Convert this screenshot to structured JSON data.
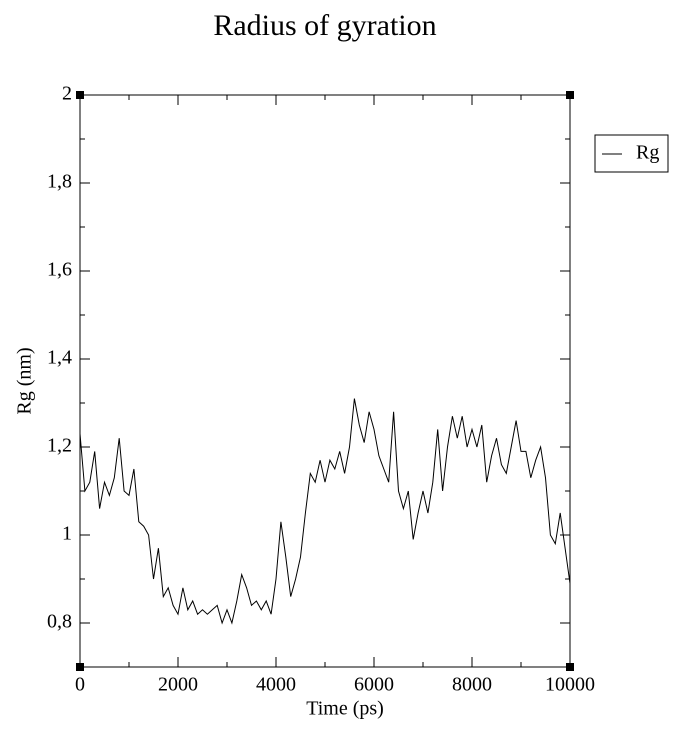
{
  "chart_data": {
    "type": "line",
    "title": "Radius of gyration",
    "x_label": "Time (ps)",
    "y_label": "Rg (nm)",
    "xlim": [
      0,
      10000
    ],
    "ylim": [
      0.7,
      2
    ],
    "xticks": [
      0,
      2000,
      4000,
      6000,
      8000,
      10000
    ],
    "xminorticks": [
      1000,
      3000,
      5000,
      7000,
      9000
    ],
    "yticks": [
      {
        "value": 0.8,
        "label": "0,8"
      },
      1,
      {
        "value": 1.2,
        "label": "1,2"
      },
      {
        "value": 1.4,
        "label": "1,4"
      },
      {
        "value": 1.6,
        "label": "1,6"
      },
      {
        "value": 1.8,
        "label": "1,8"
      },
      2
    ],
    "yminorticks": [
      0.9,
      1.1,
      1.3,
      1.5,
      1.7,
      1.9
    ],
    "legend": "upper right",
    "grid": false,
    "x": [
      0,
      100,
      200,
      300,
      400,
      500,
      600,
      700,
      800,
      900,
      1000,
      1100,
      1200,
      1300,
      1400,
      1500,
      1600,
      1700,
      1800,
      1900,
      2000,
      2100,
      2200,
      2300,
      2400,
      2500,
      2600,
      2700,
      2800,
      2900,
      3000,
      3100,
      3200,
      3300,
      3400,
      3500,
      3600,
      3700,
      3800,
      3900,
      4000,
      4100,
      4200,
      4300,
      4400,
      4500,
      4600,
      4700,
      4800,
      4900,
      5000,
      5100,
      5200,
      5300,
      5400,
      5500,
      5600,
      5700,
      5800,
      5900,
      6000,
      6100,
      6200,
      6300,
      6400,
      6500,
      6600,
      6700,
      6800,
      6900,
      7000,
      7100,
      7200,
      7300,
      7400,
      7500,
      7600,
      7700,
      7800,
      7900,
      8000,
      8100,
      8200,
      8300,
      8400,
      8500,
      8600,
      8700,
      8800,
      8900,
      9000,
      9100,
      9200,
      9300,
      9400,
      9500,
      9600,
      9700,
      9800,
      9900,
      10000
    ],
    "series": [
      {
        "name": "Rg",
        "color": "#000000",
        "values": [
          1.23,
          1.1,
          1.12,
          1.19,
          1.06,
          1.12,
          1.09,
          1.13,
          1.22,
          1.1,
          1.09,
          1.15,
          1.03,
          1.02,
          1.0,
          0.9,
          0.97,
          0.86,
          0.88,
          0.84,
          0.82,
          0.88,
          0.83,
          0.85,
          0.82,
          0.83,
          0.82,
          0.83,
          0.84,
          0.8,
          0.83,
          0.8,
          0.85,
          0.91,
          0.88,
          0.84,
          0.85,
          0.83,
          0.85,
          0.82,
          0.9,
          1.03,
          0.95,
          0.86,
          0.9,
          0.95,
          1.05,
          1.14,
          1.12,
          1.17,
          1.12,
          1.17,
          1.15,
          1.19,
          1.14,
          1.2,
          1.31,
          1.25,
          1.21,
          1.28,
          1.24,
          1.18,
          1.15,
          1.12,
          1.28,
          1.1,
          1.06,
          1.1,
          0.99,
          1.05,
          1.1,
          1.05,
          1.12,
          1.24,
          1.1,
          1.2,
          1.27,
          1.22,
          1.27,
          1.2,
          1.24,
          1.2,
          1.25,
          1.12,
          1.18,
          1.22,
          1.16,
          1.14,
          1.2,
          1.26,
          1.19,
          1.19,
          1.13,
          1.17,
          1.2,
          1.13,
          1.0,
          0.98,
          1.05,
          0.97,
          0.89
        ]
      }
    ]
  }
}
